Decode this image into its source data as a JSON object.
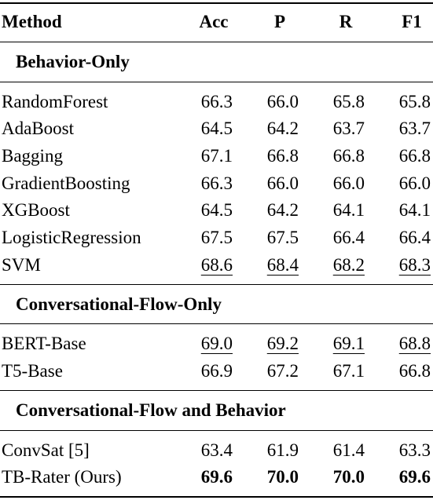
{
  "header": {
    "method": "Method",
    "acc": "Acc",
    "p": "P",
    "r": "R",
    "f1": "F1"
  },
  "sections": [
    {
      "title": "Behavior-Only",
      "rows": [
        {
          "method": "RandomForest",
          "acc": "66.3",
          "p": "66.0",
          "r": "65.8",
          "f1": "65.8"
        },
        {
          "method": "AdaBoost",
          "acc": "64.5",
          "p": "64.2",
          "r": "63.7",
          "f1": "63.7"
        },
        {
          "method": "Bagging",
          "acc": "67.1",
          "p": "66.8",
          "r": "66.8",
          "f1": "66.8"
        },
        {
          "method": "GradientBoosting",
          "acc": "66.3",
          "p": "66.0",
          "r": "66.0",
          "f1": "66.0"
        },
        {
          "method": "XGBoost",
          "acc": "64.5",
          "p": "64.2",
          "r": "64.1",
          "f1": "64.1"
        },
        {
          "method": "LogisticRegression",
          "acc": "67.5",
          "p": "67.5",
          "r": "66.4",
          "f1": "66.4"
        },
        {
          "method": "SVM",
          "acc": "68.6",
          "p": "68.4",
          "r": "68.2",
          "f1": "68.3",
          "style": "underline"
        }
      ]
    },
    {
      "title": "Conversational-Flow-Only",
      "rows": [
        {
          "method": "BERT-Base",
          "acc": "69.0",
          "p": "69.2",
          "r": "69.1",
          "f1": "68.8",
          "style": "underline"
        },
        {
          "method": "T5-Base",
          "acc": "66.9",
          "p": "67.2",
          "r": "67.1",
          "f1": "66.8"
        }
      ]
    },
    {
      "title": "Conversational-Flow and Behavior",
      "rows": [
        {
          "method": "ConvSat [5]",
          "acc": "63.4",
          "p": "61.9",
          "r": "61.4",
          "f1": "63.3"
        },
        {
          "method": "TB-Rater (Ours)",
          "acc": "69.6",
          "p": "70.0",
          "r": "70.0",
          "f1": "69.6",
          "style": "bold"
        }
      ]
    }
  ]
}
